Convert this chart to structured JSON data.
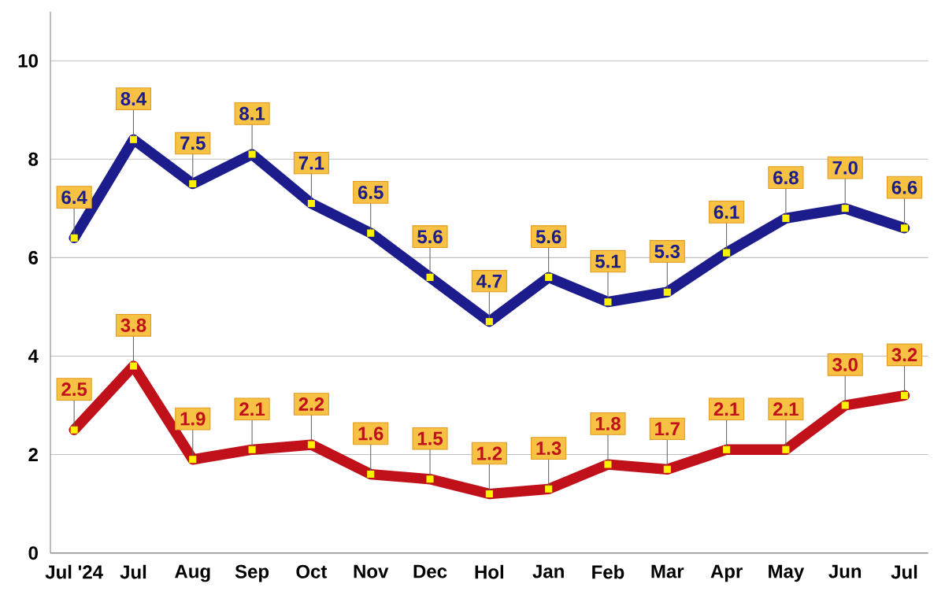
{
  "chart_data": {
    "type": "line",
    "categories": [
      "Jul '24",
      "Jul",
      "Aug",
      "Sep",
      "Oct",
      "Nov",
      "Dec",
      "Hol",
      "Jan",
      "Feb",
      "Mar",
      "Apr",
      "May",
      "Jun",
      "Jul"
    ],
    "series": [
      {
        "color": "#1c1c8c",
        "values": [
          6.4,
          8.4,
          7.5,
          8.1,
          7.1,
          6.5,
          5.6,
          4.7,
          5.6,
          5.1,
          5.3,
          6.1,
          6.8,
          7.0,
          6.6
        ],
        "value_labels": [
          "6.4",
          "8.4",
          "7.5",
          "8.1",
          "7.1",
          "6.5",
          "5.6",
          "4.7",
          "5.6",
          "5.1",
          "5.3",
          "6.1",
          "6.8",
          "7.0",
          "6.6"
        ]
      },
      {
        "color": "#c0101a",
        "values": [
          2.5,
          3.8,
          1.9,
          2.1,
          2.2,
          1.6,
          1.5,
          1.2,
          1.3,
          1.8,
          1.7,
          2.1,
          2.1,
          3.0,
          3.2
        ],
        "value_labels": [
          "2.5",
          "3.8",
          "1.9",
          "2.1",
          "2.2",
          "1.6",
          "1.5",
          "1.2",
          "1.3",
          "1.8",
          "1.7",
          "2.1",
          "2.1",
          "3.0",
          "3.2"
        ]
      }
    ],
    "ylim": [
      0,
      11
    ],
    "yticks": [
      0,
      2,
      4,
      6,
      8,
      10
    ],
    "grid": "y",
    "marker": "square",
    "line_style": "solid"
  }
}
